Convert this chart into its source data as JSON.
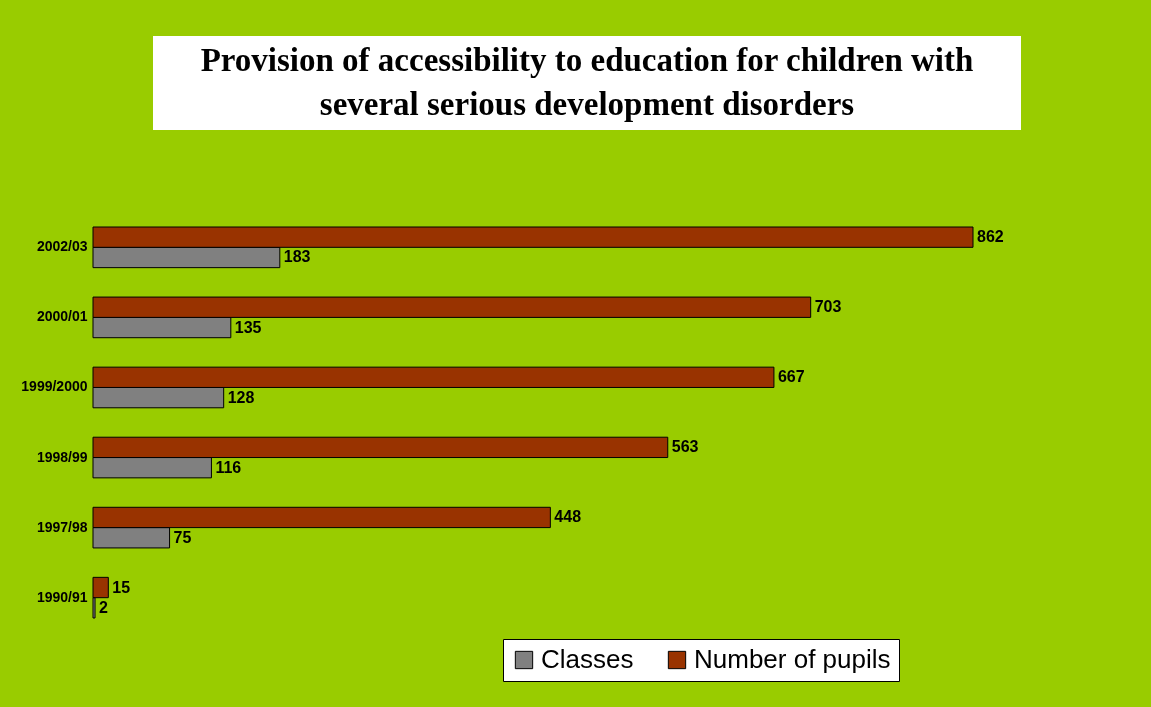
{
  "chart_data": {
    "type": "bar",
    "orientation": "horizontal",
    "title": "Provision of accessibility to education for children with several serious development disorders",
    "categories": [
      "2002/03",
      "2000/01",
      "1999/2000",
      "1998/99",
      "1997/98",
      "1990/91"
    ],
    "series": [
      {
        "name": "Classes",
        "color": "#808080",
        "values": [
          183,
          135,
          128,
          116,
          75,
          2
        ]
      },
      {
        "name": "Number of pupils",
        "color": "#993300",
        "values": [
          862,
          703,
          667,
          563,
          448,
          15
        ]
      }
    ],
    "data_labels": true,
    "legend": "bottom right"
  }
}
